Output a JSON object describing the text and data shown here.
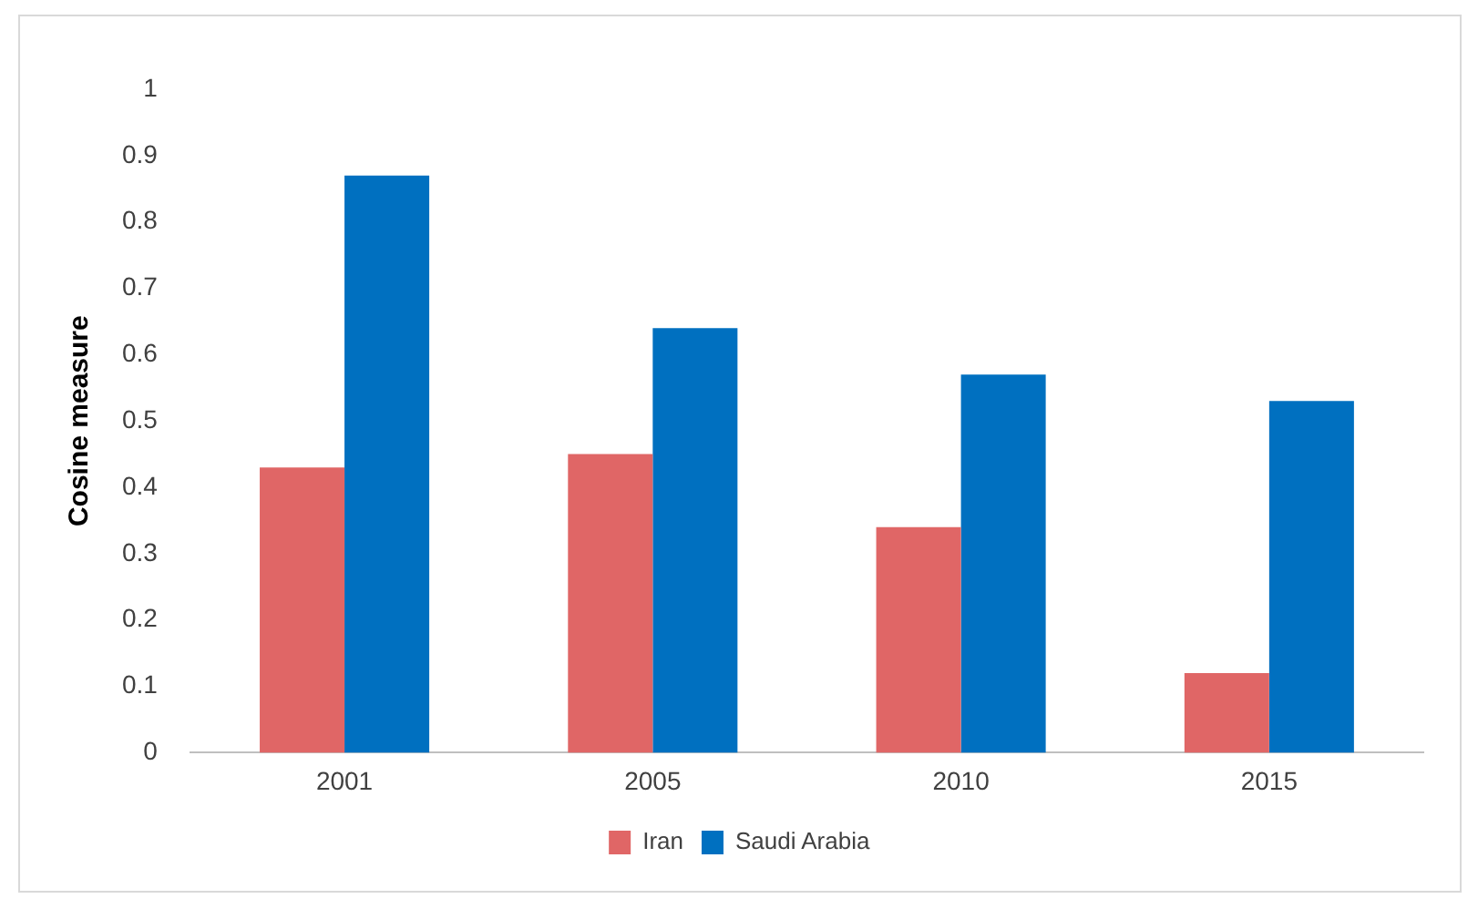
{
  "chart_data": {
    "type": "bar",
    "ylabel": "Cosine measure",
    "categories": [
      "2001",
      "2005",
      "2010",
      "2015"
    ],
    "series": [
      {
        "name": "Iran",
        "color": "#e06666",
        "values": [
          0.43,
          0.45,
          0.34,
          0.12
        ]
      },
      {
        "name": "Saudi Arabia",
        "color": "#0070c0",
        "values": [
          0.87,
          0.64,
          0.57,
          0.53
        ]
      }
    ],
    "ylim": [
      0,
      1
    ],
    "yticks": [
      0,
      0.1,
      0.2,
      0.3,
      0.4,
      0.5,
      0.6,
      0.7,
      0.8,
      0.9,
      1
    ],
    "grid": false,
    "legend": "bottom"
  }
}
